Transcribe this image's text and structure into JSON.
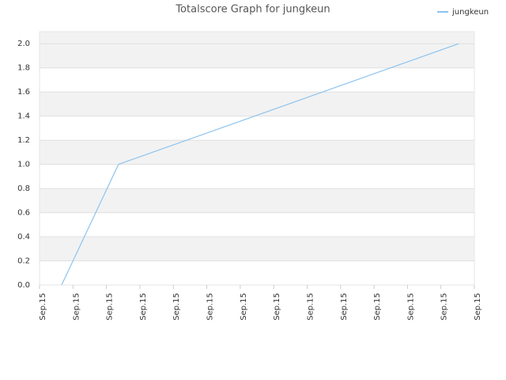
{
  "chart_data": {
    "type": "line",
    "title": "Totalscore Graph for jungkeun",
    "x": [
      0.66,
      2.36,
      12.53
    ],
    "series": [
      {
        "name": "jungkeun",
        "color": "#8cc3ee",
        "values": [
          0,
          1.0,
          2.0
        ]
      }
    ],
    "xlim": [
      0,
      13
    ],
    "xticks": [
      {
        "value": 0,
        "label": "Sep.15"
      },
      {
        "value": 1,
        "label": "Sep.15"
      },
      {
        "value": 2,
        "label": "Sep.15"
      },
      {
        "value": 3,
        "label": "Sep.15"
      },
      {
        "value": 4,
        "label": "Sep.15"
      },
      {
        "value": 5,
        "label": "Sep.15"
      },
      {
        "value": 6,
        "label": "Sep.15"
      },
      {
        "value": 7,
        "label": "Sep.15"
      },
      {
        "value": 8,
        "label": "Sep.15"
      },
      {
        "value": 9,
        "label": "Sep.15"
      },
      {
        "value": 10,
        "label": "Sep.15"
      },
      {
        "value": 11,
        "label": "Sep.15"
      },
      {
        "value": 12,
        "label": "Sep.15"
      },
      {
        "value": 13,
        "label": "Sep.15"
      }
    ],
    "ylim": [
      0,
      2.1
    ],
    "yticks": [
      {
        "value": 0,
        "label": "0.0"
      },
      0.2,
      0.4,
      0.6,
      0.8,
      {
        "value": 1,
        "label": "1.0"
      },
      1.2,
      1.4,
      1.6,
      1.8,
      {
        "value": 2,
        "label": "2.0"
      }
    ],
    "grid": true,
    "legend": "top-right"
  }
}
